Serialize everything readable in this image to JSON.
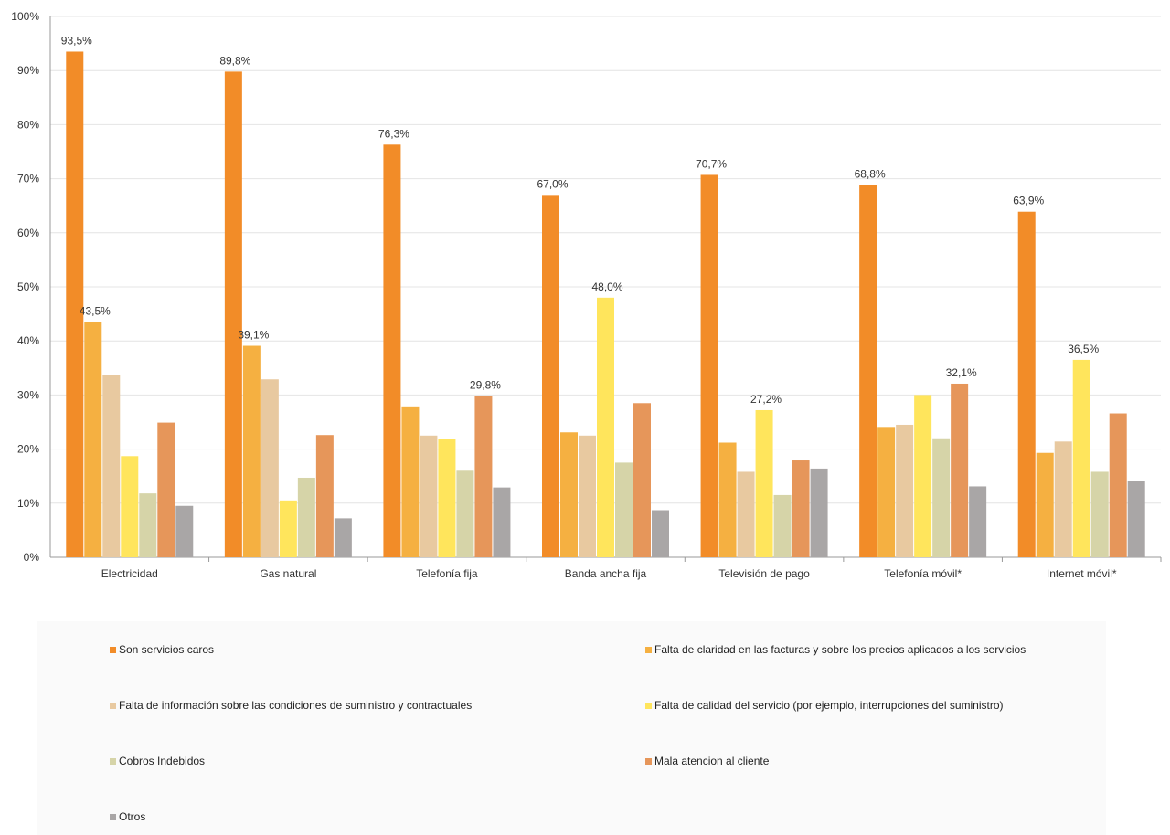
{
  "chart_data": {
    "type": "bar",
    "categories": [
      "Electricidad",
      "Gas natural",
      "Telefonía fija",
      "Banda ancha fija",
      "Televisión de pago",
      "Telefonía móvil*",
      "Internet móvil*"
    ],
    "ylim": [
      0,
      100
    ],
    "yticks": [
      "0%",
      "10%",
      "20%",
      "30%",
      "40%",
      "50%",
      "60%",
      "70%",
      "80%",
      "90%",
      "100%"
    ],
    "grid": true,
    "legend_position": "bottom",
    "series": [
      {
        "name": "Son servicios caros",
        "color": "#F28C28",
        "values": [
          93.5,
          89.8,
          76.3,
          67.0,
          70.7,
          68.8,
          63.9
        ]
      },
      {
        "name": "Falta de claridad en las facturas y sobre los precios aplicados a los servicios",
        "color": "#F5B041",
        "values": [
          43.5,
          39.1,
          27.9,
          23.1,
          21.2,
          24.1,
          19.3
        ]
      },
      {
        "name": "Falta de información sobre las condiciones de suministro y contractuales",
        "color": "#E8C9A0",
        "values": [
          33.7,
          32.9,
          22.5,
          22.5,
          15.8,
          24.5,
          21.4
        ]
      },
      {
        "name": "Falta de calidad del servicio (por ejemplo, interrupciones del suministro)",
        "color": "#FFE55C",
        "values": [
          18.7,
          10.5,
          21.8,
          48.0,
          27.2,
          30.0,
          36.5
        ]
      },
      {
        "name": "Cobros Indebidos",
        "color": "#D6D4A8",
        "values": [
          11.8,
          14.7,
          16.0,
          17.5,
          11.5,
          22.0,
          15.8
        ]
      },
      {
        "name": "Mala atencion al cliente",
        "color": "#E6965A",
        "values": [
          24.9,
          22.6,
          29.8,
          28.5,
          17.9,
          32.1,
          26.6
        ]
      },
      {
        "name": "Otros",
        "color": "#A9A6A6",
        "values": [
          9.5,
          7.2,
          12.9,
          8.7,
          16.4,
          13.1,
          14.1
        ]
      }
    ],
    "data_labels": [
      {
        "category": 0,
        "series": 0,
        "text": "93,5%"
      },
      {
        "category": 0,
        "series": 1,
        "text": "43,5%"
      },
      {
        "category": 1,
        "series": 0,
        "text": "89,8%"
      },
      {
        "category": 1,
        "series": 1,
        "text": "39,1%"
      },
      {
        "category": 2,
        "series": 0,
        "text": "76,3%"
      },
      {
        "category": 2,
        "series": 5,
        "text": "29,8%"
      },
      {
        "category": 3,
        "series": 0,
        "text": "67,0%"
      },
      {
        "category": 3,
        "series": 3,
        "text": "48,0%"
      },
      {
        "category": 4,
        "series": 0,
        "text": "70,7%"
      },
      {
        "category": 4,
        "series": 3,
        "text": "27,2%"
      },
      {
        "category": 5,
        "series": 0,
        "text": "68,8%"
      },
      {
        "category": 5,
        "series": 5,
        "text": "32,1%"
      },
      {
        "category": 6,
        "series": 0,
        "text": "63,9%"
      },
      {
        "category": 6,
        "series": 3,
        "text": "36,5%"
      }
    ]
  }
}
